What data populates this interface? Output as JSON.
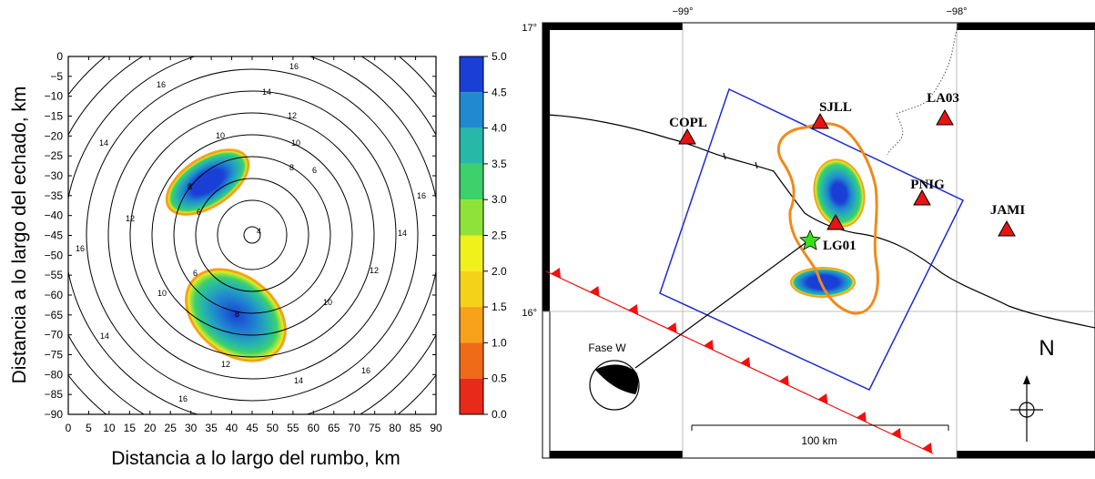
{
  "left_panel": {
    "xlabel": "Distancia a lo largo del rumbo, km",
    "ylabel": "Distancia a lo largo del echado, km",
    "x_ticks": [
      "0",
      "5",
      "10",
      "15",
      "20",
      "25",
      "30",
      "35",
      "40",
      "45",
      "50",
      "55",
      "60",
      "65",
      "70",
      "75",
      "80",
      "85",
      "90"
    ],
    "y_ticks": [
      "0",
      "−5",
      "−10",
      "−15",
      "−20",
      "−25",
      "−30",
      "−35",
      "−40",
      "−45",
      "−50",
      "−55",
      "−60",
      "−65",
      "−70",
      "−75",
      "−80",
      "−85",
      "−90"
    ],
    "contour_labels": [
      "4",
      "6",
      "8",
      "10",
      "12",
      "14",
      "16"
    ],
    "colorbar_ticks": [
      "5.0",
      "4.5",
      "4.0",
      "3.5",
      "3.0",
      "2.5",
      "2.0",
      "1.5",
      "1.0",
      "0.5",
      "0.0"
    ],
    "colorbar_colors": [
      "#1a3fd6",
      "#1f8ad0",
      "#27b8a8",
      "#3cd16b",
      "#8ee23a",
      "#f0f01a",
      "#f5d21a",
      "#f7a21a",
      "#f06b18",
      "#e82a18",
      "#ffffff"
    ]
  },
  "right_panel": {
    "lon_labels": [
      "−99°",
      "−98°"
    ],
    "lat_labels": [
      "17°",
      "16°"
    ],
    "stations": [
      "COPL",
      "SJLL",
      "LA03",
      "PNIG",
      "JAMI",
      "LG01"
    ],
    "mechanism_label": "Fase W",
    "scale_label": "100 km",
    "north_label": "N"
  }
}
